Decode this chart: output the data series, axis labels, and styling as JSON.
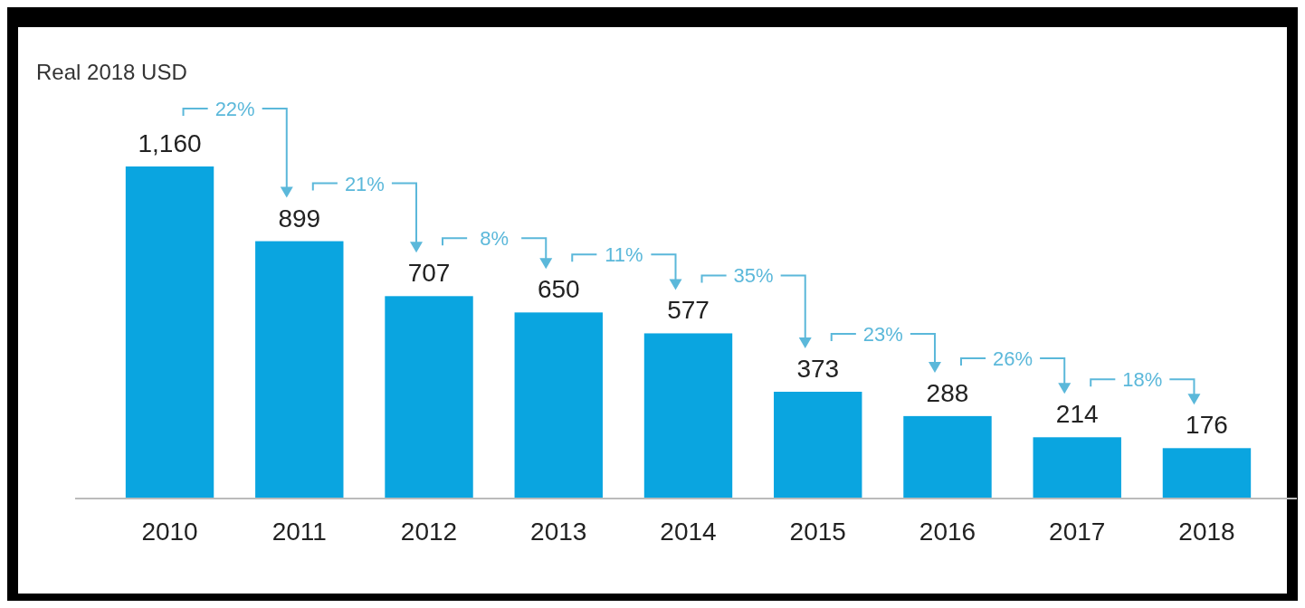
{
  "chart_data": {
    "type": "bar",
    "ylabel": "Real 2018 USD",
    "categories": [
      "2010",
      "2011",
      "2012",
      "2013",
      "2014",
      "2015",
      "2016",
      "2017",
      "2018"
    ],
    "values": [
      1160,
      899,
      707,
      650,
      577,
      373,
      288,
      214,
      176
    ],
    "color": "#0aa5e0",
    "data_labels": true,
    "value_labels": [
      "1,160",
      "899",
      "707",
      "650",
      "577",
      "373",
      "288",
      "214",
      "176"
    ],
    "annotations": [
      "22%",
      "21%",
      "8%",
      "11%",
      "35%",
      "23%",
      "26%",
      "18%"
    ]
  }
}
